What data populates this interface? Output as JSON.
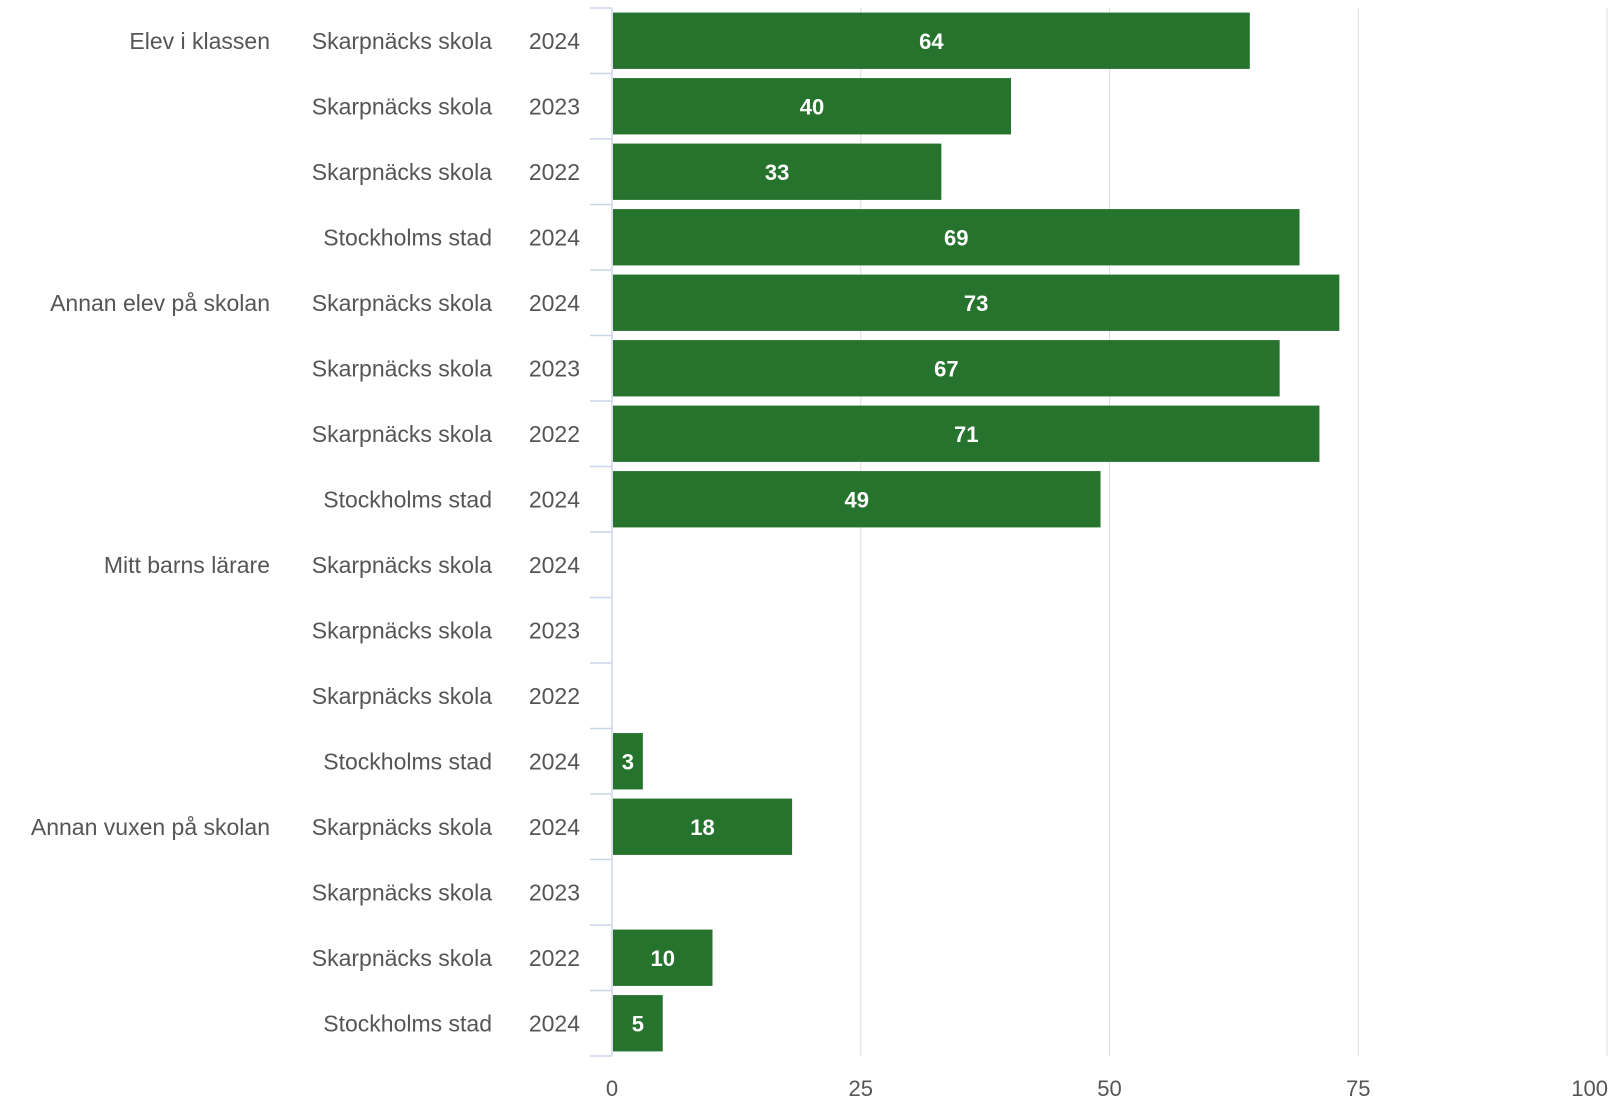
{
  "chart_data": {
    "type": "bar",
    "orientation": "horizontal",
    "bar_color": "#26732e",
    "grid_color": "#dddddd",
    "axis_color": "#ccd6eb",
    "xlim": [
      0,
      100
    ],
    "xticks": [
      0,
      25,
      50,
      75,
      100
    ],
    "grid": true,
    "footnote": "",
    "groups": [
      {
        "label": "Elev i klassen",
        "rows": [
          {
            "unit": "Skarpnäcks skola",
            "year": "2024",
            "value": 64
          },
          {
            "unit": "Skarpnäcks skola",
            "year": "2023",
            "value": 40
          },
          {
            "unit": "Skarpnäcks skola",
            "year": "2022",
            "value": 33
          },
          {
            "unit": "Stockholms stad",
            "year": "2024",
            "value": 69
          }
        ]
      },
      {
        "label": "Annan elev på skolan",
        "rows": [
          {
            "unit": "Skarpnäcks skola",
            "year": "2024",
            "value": 73
          },
          {
            "unit": "Skarpnäcks skola",
            "year": "2023",
            "value": 67
          },
          {
            "unit": "Skarpnäcks skola",
            "year": "2022",
            "value": 71
          },
          {
            "unit": "Stockholms stad",
            "year": "2024",
            "value": 49
          }
        ]
      },
      {
        "label": "Mitt barns lärare",
        "rows": [
          {
            "unit": "Skarpnäcks skola",
            "year": "2024",
            "value": null
          },
          {
            "unit": "Skarpnäcks skola",
            "year": "2023",
            "value": null
          },
          {
            "unit": "Skarpnäcks skola",
            "year": "2022",
            "value": null
          },
          {
            "unit": "Stockholms stad",
            "year": "2024",
            "value": 3
          }
        ]
      },
      {
        "label": "Annan vuxen på skolan",
        "rows": [
          {
            "unit": "Skarpnäcks skola",
            "year": "2024",
            "value": 18
          },
          {
            "unit": "Skarpnäcks skola",
            "year": "2023",
            "value": null
          },
          {
            "unit": "Skarpnäcks skola",
            "year": "2022",
            "value": 10
          },
          {
            "unit": "Stockholms stad",
            "year": "2024",
            "value": 5
          }
        ]
      }
    ]
  }
}
